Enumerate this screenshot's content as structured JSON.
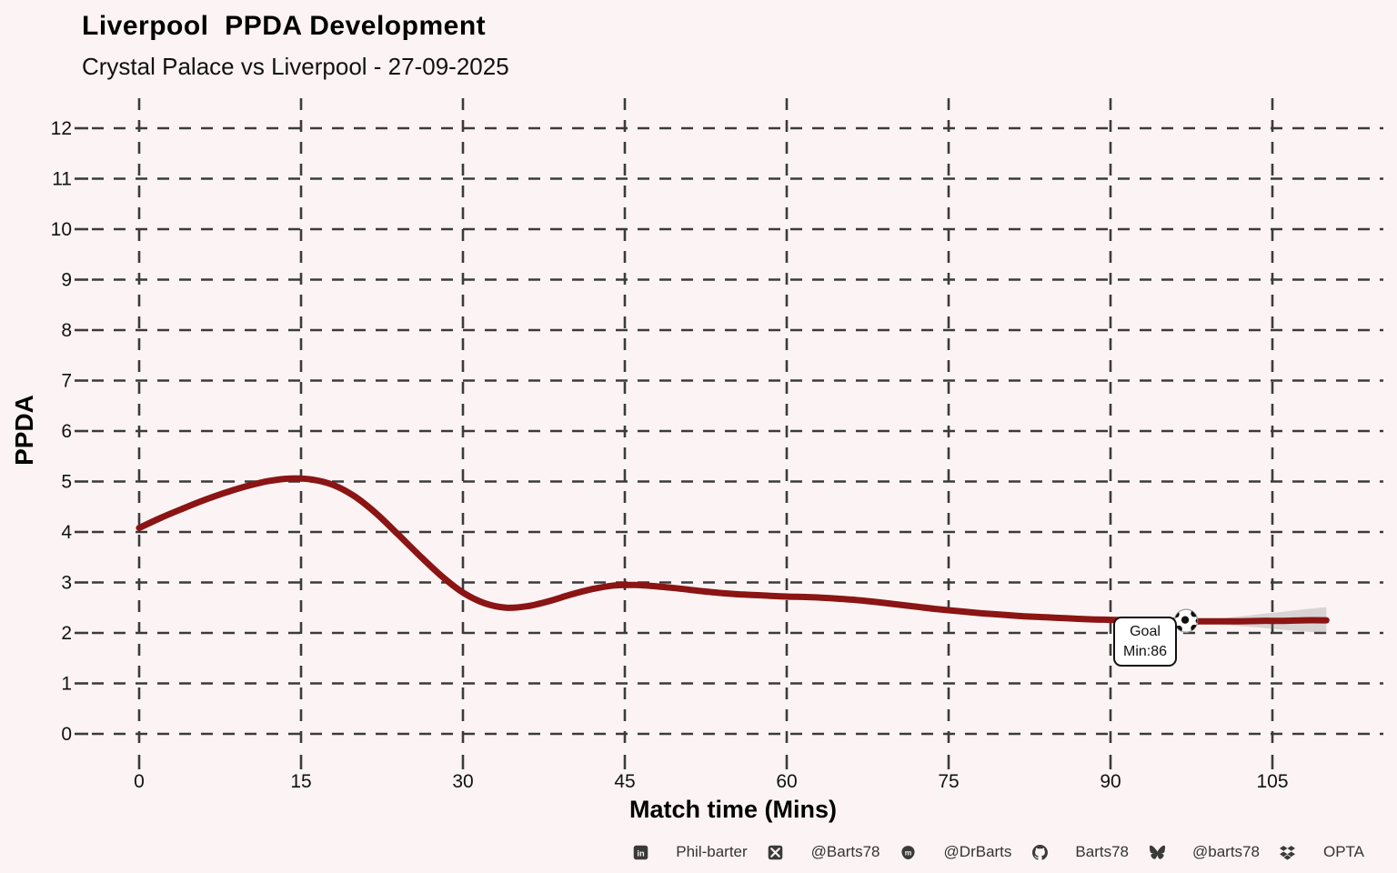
{
  "title": "Liverpool  PPDA Development",
  "subtitle": "Crystal Palace vs Liverpool - 27-09-2025",
  "chart_data": {
    "type": "line",
    "title": "Liverpool  PPDA Development",
    "subtitle": "Crystal Palace vs Liverpool - 27-09-2025",
    "xlabel": "Match time (Mins)",
    "ylabel": "PPDA",
    "xlim": [
      0,
      110
    ],
    "ylim": [
      0,
      12
    ],
    "x_ticks": [
      0,
      15,
      30,
      45,
      60,
      75,
      90,
      105
    ],
    "y_ticks": [
      0,
      1,
      2,
      3,
      4,
      5,
      6,
      7,
      8,
      9,
      10,
      11,
      12
    ],
    "grid": "dashed",
    "grid_color": "#3b3b3b",
    "line_color": "#8b1414",
    "background_color": "#fcf4f4",
    "series": [
      {
        "name": "Liverpool PPDA (smoothed)",
        "points": [
          [
            0,
            4.08
          ],
          [
            2,
            4.28
          ],
          [
            4,
            4.46
          ],
          [
            6,
            4.63
          ],
          [
            8,
            4.78
          ],
          [
            10,
            4.91
          ],
          [
            12,
            5.01
          ],
          [
            14,
            5.06
          ],
          [
            16,
            5.04
          ],
          [
            18,
            4.93
          ],
          [
            20,
            4.7
          ],
          [
            22,
            4.36
          ],
          [
            24,
            3.95
          ],
          [
            26,
            3.53
          ],
          [
            28,
            3.13
          ],
          [
            30,
            2.8
          ],
          [
            32,
            2.59
          ],
          [
            34,
            2.5
          ],
          [
            36,
            2.53
          ],
          [
            38,
            2.63
          ],
          [
            40,
            2.76
          ],
          [
            42,
            2.87
          ],
          [
            44,
            2.94
          ],
          [
            46,
            2.95
          ],
          [
            48,
            2.92
          ],
          [
            50,
            2.88
          ],
          [
            52,
            2.83
          ],
          [
            54,
            2.79
          ],
          [
            56,
            2.76
          ],
          [
            58,
            2.74
          ],
          [
            60,
            2.72
          ],
          [
            62,
            2.71
          ],
          [
            64,
            2.69
          ],
          [
            66,
            2.66
          ],
          [
            68,
            2.62
          ],
          [
            70,
            2.57
          ],
          [
            72,
            2.52
          ],
          [
            74,
            2.47
          ],
          [
            76,
            2.43
          ],
          [
            78,
            2.39
          ],
          [
            80,
            2.36
          ],
          [
            82,
            2.33
          ],
          [
            84,
            2.31
          ],
          [
            86,
            2.29
          ],
          [
            88,
            2.27
          ],
          [
            90,
            2.26
          ],
          [
            92,
            2.25
          ],
          [
            94,
            2.24
          ],
          [
            96,
            2.24
          ],
          [
            98,
            2.23
          ],
          [
            100,
            2.23
          ],
          [
            102,
            2.23
          ],
          [
            104,
            2.24
          ],
          [
            106,
            2.24
          ],
          [
            108,
            2.25
          ],
          [
            110,
            2.25
          ]
        ]
      }
    ],
    "annotation": {
      "label_line1": "Goal",
      "label_line2": "Min:86",
      "goal_minute": 86,
      "marker": "soccer-ball",
      "marker_minute": 97,
      "marker_ppda": 2.24
    }
  },
  "footer": {
    "items": [
      {
        "icon": "linkedin",
        "label": "Phil-barter"
      },
      {
        "icon": "x",
        "label": "@Barts78"
      },
      {
        "icon": "mastodon",
        "label": "@DrBarts"
      },
      {
        "icon": "github",
        "label": "Barts78"
      },
      {
        "icon": "bluesky",
        "label": "@barts78"
      },
      {
        "icon": "dropbox",
        "label": "OPTA"
      }
    ]
  }
}
